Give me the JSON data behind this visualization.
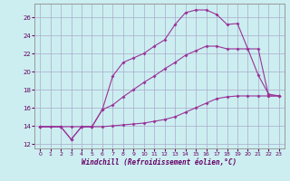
{
  "xlabel": "Windchill (Refroidissement éolien,°C)",
  "background_color": "#cceef0",
  "grid_color": "#aaaacc",
  "line_color": "#993399",
  "xlim": [
    -0.5,
    23.5
  ],
  "ylim": [
    11.5,
    27.5
  ],
  "yticks": [
    12,
    14,
    16,
    18,
    20,
    22,
    24,
    26
  ],
  "xticks": [
    0,
    1,
    2,
    3,
    4,
    5,
    6,
    7,
    8,
    9,
    10,
    11,
    12,
    13,
    14,
    15,
    16,
    17,
    18,
    19,
    20,
    21,
    22,
    23
  ],
  "line1_x": [
    0,
    2,
    3,
    4,
    5,
    6,
    7,
    8,
    9,
    10,
    11,
    12,
    13,
    14,
    15,
    16,
    17,
    18,
    19,
    20,
    21,
    22,
    23
  ],
  "line1_y": [
    13.9,
    13.9,
    12.5,
    13.9,
    13.9,
    15.8,
    19.5,
    21.0,
    21.5,
    22.0,
    22.8,
    23.5,
    25.2,
    26.5,
    26.8,
    26.8,
    26.3,
    25.2,
    25.3,
    22.5,
    19.6,
    17.5,
    17.3
  ],
  "line2_x": [
    0,
    2,
    3,
    4,
    5,
    6,
    7,
    8,
    9,
    10,
    11,
    12,
    13,
    14,
    15,
    16,
    17,
    18,
    19,
    20,
    21,
    22,
    23
  ],
  "line2_y": [
    13.9,
    13.9,
    12.5,
    13.9,
    13.9,
    15.8,
    16.3,
    17.2,
    18.0,
    18.8,
    19.5,
    20.3,
    21.0,
    21.8,
    22.3,
    22.8,
    22.8,
    22.5,
    22.5,
    22.5,
    22.5,
    17.3,
    17.3
  ],
  "line3_x": [
    0,
    1,
    2,
    3,
    4,
    5,
    6,
    7,
    8,
    9,
    10,
    11,
    12,
    13,
    14,
    15,
    16,
    17,
    18,
    19,
    20,
    21,
    22,
    23
  ],
  "line3_y": [
    13.9,
    13.9,
    13.9,
    13.9,
    13.9,
    13.9,
    13.9,
    14.0,
    14.1,
    14.2,
    14.3,
    14.5,
    14.7,
    15.0,
    15.5,
    16.0,
    16.5,
    17.0,
    17.2,
    17.3,
    17.3,
    17.3,
    17.3,
    17.3
  ]
}
